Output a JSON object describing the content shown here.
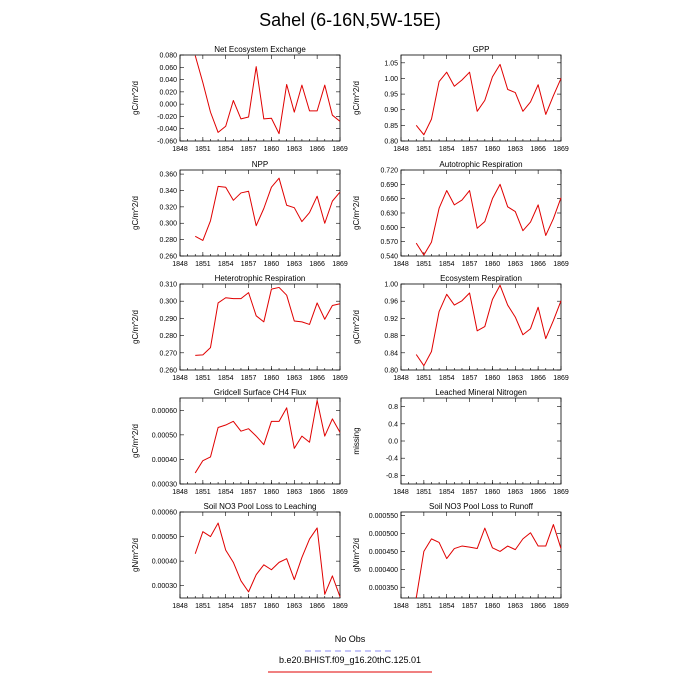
{
  "title": "Sahel (6-16N,5W-15E)",
  "legend": [
    {
      "label": "No Obs",
      "color": "#8f8ff0",
      "dash": "6,4"
    },
    {
      "label": "b.e20.BHIST.f09_g16.20thC.125.01",
      "color": "#e00000",
      "dash": ""
    }
  ],
  "chart_data": [
    {
      "type": "line",
      "title": "Net Ecosystem Exchange",
      "ylabel": "gC/m^2/d",
      "xlim": [
        1848,
        1869
      ],
      "ylim": [
        -0.06,
        0.08
      ],
      "xticks": [
        1848,
        1851,
        1854,
        1857,
        1860,
        1863,
        1866,
        1869
      ],
      "yticks": [
        -0.06,
        -0.04,
        -0.02,
        0.0,
        0.02,
        0.04,
        0.06,
        0.08
      ],
      "ytick_labels": [
        "-0.060",
        "-0.040",
        "-0.020",
        "0.000",
        "0.020",
        "0.040",
        "0.060",
        "0.080"
      ],
      "x": [
        1850,
        1851,
        1852,
        1853,
        1854,
        1855,
        1856,
        1857,
        1858,
        1859,
        1860,
        1861,
        1862,
        1863,
        1864,
        1865,
        1866,
        1867,
        1868,
        1869
      ],
      "series": [
        {
          "color": "#e00000",
          "values": [
            0.079,
            0.035,
            -0.013,
            -0.046,
            -0.036,
            0.006,
            -0.024,
            -0.021,
            0.061,
            -0.024,
            -0.023,
            -0.048,
            0.032,
            -0.013,
            0.031,
            -0.011,
            -0.011,
            0.031,
            -0.018,
            -0.028
          ]
        }
      ]
    },
    {
      "type": "line",
      "title": "GPP",
      "ylabel": "gC/m^2/d",
      "xlim": [
        1848,
        1869
      ],
      "ylim": [
        0.8,
        1.075
      ],
      "xticks": [
        1848,
        1851,
        1854,
        1857,
        1860,
        1863,
        1866,
        1869
      ],
      "yticks": [
        0.8,
        0.85,
        0.9,
        0.95,
        1.0,
        1.05
      ],
      "ytick_labels": [
        "0.80",
        "0.85",
        "0.90",
        "0.95",
        "1.00",
        "1.05"
      ],
      "x": [
        1850,
        1851,
        1852,
        1853,
        1854,
        1855,
        1856,
        1857,
        1858,
        1859,
        1860,
        1861,
        1862,
        1863,
        1864,
        1865,
        1866,
        1867,
        1868,
        1869
      ],
      "series": [
        {
          "color": "#e00000",
          "values": [
            0.85,
            0.82,
            0.87,
            0.99,
            1.02,
            0.975,
            0.995,
            1.02,
            0.895,
            0.93,
            1.005,
            1.045,
            0.965,
            0.955,
            0.895,
            0.925,
            0.98,
            0.885,
            0.945,
            1.0
          ]
        }
      ]
    },
    {
      "type": "line",
      "title": "NPP",
      "ylabel": "gC/m^2/d",
      "xlim": [
        1848,
        1869
      ],
      "ylim": [
        0.26,
        0.365
      ],
      "xticks": [
        1848,
        1851,
        1854,
        1857,
        1860,
        1863,
        1866,
        1869
      ],
      "yticks": [
        0.26,
        0.28,
        0.3,
        0.32,
        0.34,
        0.36
      ],
      "ytick_labels": [
        "0.260",
        "0.280",
        "0.300",
        "0.320",
        "0.340",
        "0.360"
      ],
      "x": [
        1850,
        1851,
        1852,
        1853,
        1854,
        1855,
        1856,
        1857,
        1858,
        1859,
        1860,
        1861,
        1862,
        1863,
        1864,
        1865,
        1866,
        1867,
        1868,
        1869
      ],
      "series": [
        {
          "color": "#e00000",
          "values": [
            0.284,
            0.279,
            0.303,
            0.345,
            0.344,
            0.328,
            0.337,
            0.339,
            0.297,
            0.318,
            0.344,
            0.355,
            0.322,
            0.319,
            0.302,
            0.313,
            0.333,
            0.3,
            0.327,
            0.338
          ]
        }
      ]
    },
    {
      "type": "line",
      "title": "Autotrophic Respiration",
      "ylabel": "gC/m^2/d",
      "xlim": [
        1848,
        1869
      ],
      "ylim": [
        0.54,
        0.72
      ],
      "xticks": [
        1848,
        1851,
        1854,
        1857,
        1860,
        1863,
        1866,
        1869
      ],
      "yticks": [
        0.54,
        0.57,
        0.6,
        0.63,
        0.66,
        0.69,
        0.72
      ],
      "ytick_labels": [
        "0.540",
        "0.570",
        "0.600",
        "0.630",
        "0.660",
        "0.690",
        "0.720"
      ],
      "x": [
        1850,
        1851,
        1852,
        1853,
        1854,
        1855,
        1856,
        1857,
        1858,
        1859,
        1860,
        1861,
        1862,
        1863,
        1864,
        1865,
        1866,
        1867,
        1868,
        1869
      ],
      "series": [
        {
          "color": "#e00000",
          "values": [
            0.567,
            0.542,
            0.569,
            0.64,
            0.677,
            0.647,
            0.657,
            0.677,
            0.598,
            0.612,
            0.66,
            0.69,
            0.643,
            0.633,
            0.593,
            0.611,
            0.647,
            0.583,
            0.618,
            0.662
          ]
        }
      ]
    },
    {
      "type": "line",
      "title": "Heterotrophic Respiration",
      "ylabel": "gC/m^2/d",
      "xlim": [
        1848,
        1869
      ],
      "ylim": [
        0.26,
        0.31
      ],
      "xticks": [
        1848,
        1851,
        1854,
        1857,
        1860,
        1863,
        1866,
        1869
      ],
      "yticks": [
        0.26,
        0.27,
        0.28,
        0.29,
        0.3,
        0.31
      ],
      "ytick_labels": [
        "0.260",
        "0.270",
        "0.280",
        "0.290",
        "0.300",
        "0.310"
      ],
      "x": [
        1850,
        1851,
        1852,
        1853,
        1854,
        1855,
        1856,
        1857,
        1858,
        1859,
        1860,
        1861,
        1862,
        1863,
        1864,
        1865,
        1866,
        1867,
        1868,
        1869
      ],
      "series": [
        {
          "color": "#e00000",
          "values": [
            0.2685,
            0.2688,
            0.273,
            0.299,
            0.302,
            0.3015,
            0.3015,
            0.305,
            0.2915,
            0.288,
            0.307,
            0.308,
            0.3035,
            0.2885,
            0.288,
            0.2865,
            0.299,
            0.2895,
            0.2975,
            0.2985
          ]
        }
      ]
    },
    {
      "type": "line",
      "title": "Ecosystem Respiration",
      "ylabel": "gC/m^2/d",
      "xlim": [
        1848,
        1869
      ],
      "ylim": [
        0.8,
        1.0
      ],
      "xticks": [
        1848,
        1851,
        1854,
        1857,
        1860,
        1863,
        1866,
        1869
      ],
      "yticks": [
        0.8,
        0.84,
        0.88,
        0.92,
        0.96,
        1.0
      ],
      "ytick_labels": [
        "0.80",
        "0.84",
        "0.88",
        "0.92",
        "0.96",
        "1.00"
      ],
      "x": [
        1850,
        1851,
        1852,
        1853,
        1854,
        1855,
        1856,
        1857,
        1858,
        1859,
        1860,
        1861,
        1862,
        1863,
        1864,
        1865,
        1866,
        1867,
        1868,
        1869
      ],
      "series": [
        {
          "color": "#e00000",
          "values": [
            0.836,
            0.81,
            0.843,
            0.936,
            0.976,
            0.951,
            0.961,
            0.979,
            0.891,
            0.901,
            0.964,
            0.997,
            0.951,
            0.923,
            0.882,
            0.896,
            0.946,
            0.873,
            0.915,
            0.961
          ]
        }
      ]
    },
    {
      "type": "line",
      "title": "Gridcell Surface CH4 Flux",
      "ylabel": "gC/m^2/d",
      "xlim": [
        1848,
        1869
      ],
      "ylim": [
        0.0003,
        0.00065
      ],
      "xticks": [
        1848,
        1851,
        1854,
        1857,
        1860,
        1863,
        1866,
        1869
      ],
      "yticks": [
        0.0003,
        0.0004,
        0.0005,
        0.0006
      ],
      "ytick_labels": [
        "0.00030",
        "0.00040",
        "0.00050",
        "0.00060"
      ],
      "x": [
        1850,
        1851,
        1852,
        1853,
        1854,
        1855,
        1856,
        1857,
        1858,
        1859,
        1860,
        1861,
        1862,
        1863,
        1864,
        1865,
        1866,
        1867,
        1868,
        1869
      ],
      "series": [
        {
          "color": "#e00000",
          "values": [
            0.000345,
            0.000395,
            0.00041,
            0.00053,
            0.00054,
            0.000555,
            0.000515,
            0.000525,
            0.000495,
            0.00046,
            0.000555,
            0.000555,
            0.00061,
            0.000445,
            0.000495,
            0.00047,
            0.00064,
            0.000495,
            0.000565,
            0.00051
          ]
        }
      ]
    },
    {
      "type": "line",
      "title": "Leached Mineral Nitrogen",
      "ylabel": "missing",
      "xlim": [
        1848,
        1869
      ],
      "ylim": [
        -1.0,
        1.0
      ],
      "xticks": [
        1848,
        1851,
        1854,
        1857,
        1860,
        1863,
        1866,
        1869
      ],
      "yticks": [
        -0.8,
        -0.4,
        0.0,
        0.4,
        0.8
      ],
      "ytick_labels": [
        "-0.8",
        "-0.4",
        "0.0",
        "0.4",
        "0.8"
      ],
      "x": [],
      "series": []
    },
    {
      "type": "line",
      "title": "Soil NO3 Pool Loss to Leaching",
      "ylabel": "gN/m^2/d",
      "xlim": [
        1848,
        1869
      ],
      "ylim": [
        0.00025,
        0.0006
      ],
      "xticks": [
        1848,
        1851,
        1854,
        1857,
        1860,
        1863,
        1866,
        1869
      ],
      "yticks": [
        0.0003,
        0.0004,
        0.0005,
        0.0006
      ],
      "ytick_labels": [
        "0.00030",
        "0.00040",
        "0.00050",
        "0.00060"
      ],
      "x": [
        1850,
        1851,
        1852,
        1853,
        1854,
        1855,
        1856,
        1857,
        1858,
        1859,
        1860,
        1861,
        1862,
        1863,
        1864,
        1865,
        1866,
        1867,
        1868,
        1869
      ],
      "series": [
        {
          "color": "#e00000",
          "values": [
            0.00043,
            0.00052,
            0.0005,
            0.000555,
            0.000445,
            0.000395,
            0.00032,
            0.000275,
            0.000345,
            0.000385,
            0.000365,
            0.000395,
            0.00041,
            0.000325,
            0.000415,
            0.00049,
            0.000535,
            0.000265,
            0.00034,
            0.000255
          ]
        }
      ]
    },
    {
      "type": "line",
      "title": "Soil NO3 Pool Loss to Runoff",
      "ylabel": "gN/m^2/d",
      "xlim": [
        1848,
        1869
      ],
      "ylim": [
        0.00032,
        0.00056
      ],
      "xticks": [
        1848,
        1851,
        1854,
        1857,
        1860,
        1863,
        1866,
        1869
      ],
      "yticks": [
        0.00035,
        0.0004,
        0.00045,
        0.0005,
        0.00055
      ],
      "ytick_labels": [
        "0.000350",
        "0.000400",
        "0.000450",
        "0.000500",
        "0.000550"
      ],
      "x": [
        1850,
        1851,
        1852,
        1853,
        1854,
        1855,
        1856,
        1857,
        1858,
        1859,
        1860,
        1861,
        1862,
        1863,
        1864,
        1865,
        1866,
        1867,
        1868,
        1869
      ],
      "series": [
        {
          "color": "#e00000",
          "values": [
            0.00032,
            0.00045,
            0.000485,
            0.000475,
            0.00043,
            0.000458,
            0.000465,
            0.000462,
            0.000458,
            0.000515,
            0.00046,
            0.00045,
            0.000465,
            0.000455,
            0.000485,
            0.000502,
            0.000465,
            0.000465,
            0.000525,
            0.000458
          ]
        }
      ]
    }
  ]
}
